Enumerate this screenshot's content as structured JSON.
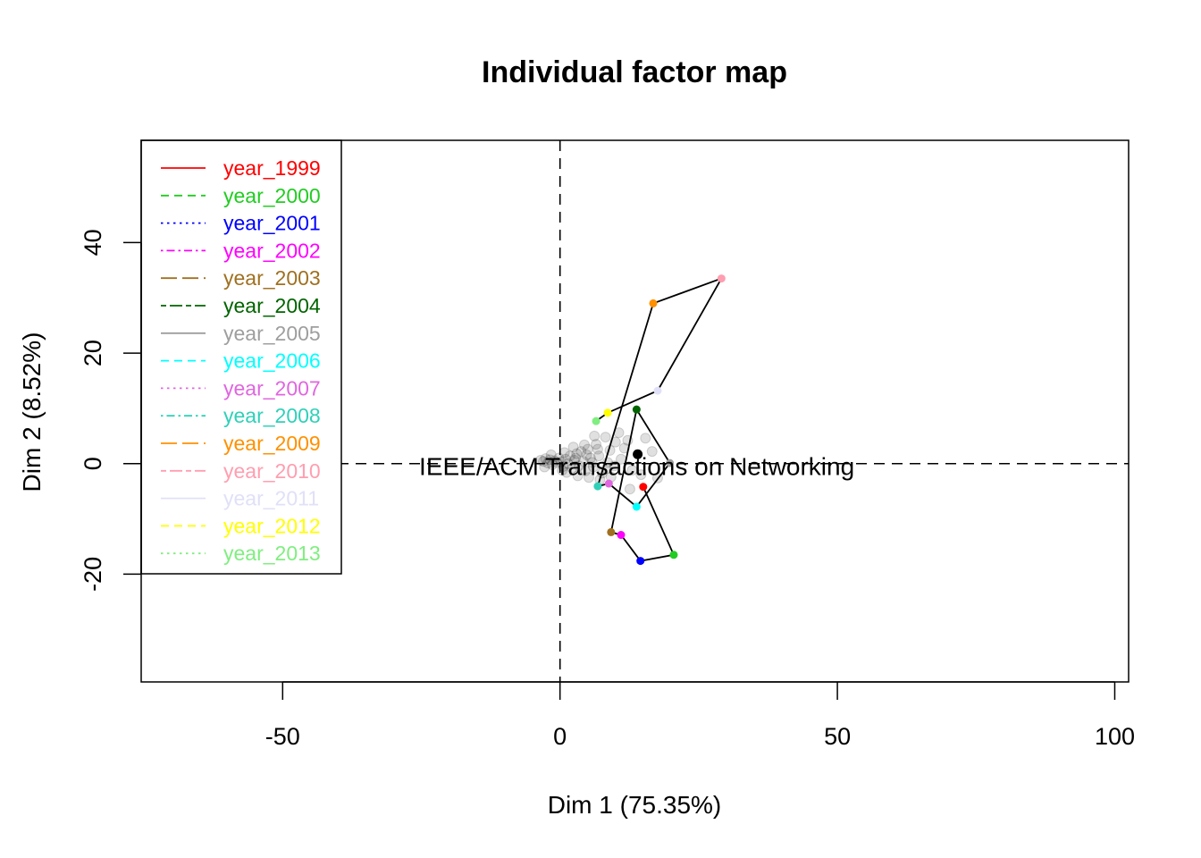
{
  "chart_data": {
    "type": "scatter",
    "title": "Individual factor map",
    "xlabel": "Dim 1 (75.35%)",
    "ylabel": "Dim 2 (8.52%)",
    "xlim": [
      -75.5,
      102.5
    ],
    "ylim": [
      -39.5,
      58.5
    ],
    "xticks": [
      -50,
      0,
      50,
      100
    ],
    "yticks": [
      -20,
      0,
      20,
      40
    ],
    "reference_lines": {
      "x": 0,
      "y": 0,
      "style": "dashed"
    },
    "legend": {
      "position": "top-left",
      "entries": [
        {
          "label": "year_1999",
          "color": "#ff0000",
          "dash": "solid"
        },
        {
          "label": "year_2000",
          "color": "#22cc22",
          "dash": "dashed"
        },
        {
          "label": "year_2001",
          "color": "#0000ff",
          "dash": "dotted"
        },
        {
          "label": "year_2002",
          "color": "#ff00ff",
          "dash": "dotdash"
        },
        {
          "label": "year_2003",
          "color": "#a07020",
          "dash": "longdash"
        },
        {
          "label": "year_2004",
          "color": "#006400",
          "dash": "twodash"
        },
        {
          "label": "year_2005",
          "color": "#9e9e9e",
          "dash": "solid"
        },
        {
          "label": "year_2006",
          "color": "#00ffff",
          "dash": "dashed"
        },
        {
          "label": "year_2007",
          "color": "#e066e0",
          "dash": "dotted"
        },
        {
          "label": "year_2008",
          "color": "#30d0b8",
          "dash": "dotdash"
        },
        {
          "label": "year_2009",
          "color": "#ff9000",
          "dash": "longdash"
        },
        {
          "label": "year_2010",
          "color": "#ff9eb0",
          "dash": "twodash"
        },
        {
          "label": "year_2011",
          "color": "#e0e0f8",
          "dash": "solid"
        },
        {
          "label": "year_2012",
          "color": "#ffff00",
          "dash": "dashed"
        },
        {
          "label": "year_2013",
          "color": "#80ee80",
          "dash": "dotted"
        }
      ]
    },
    "highlighted_individual": {
      "label": "IEEE/ACM Transactions on Networking",
      "x": 14,
      "y": 1.7,
      "color": "#000000"
    },
    "trajectory": [
      {
        "year": "1999",
        "x": 15,
        "y": -4.2,
        "color": "#ff0000"
      },
      {
        "year": "2000",
        "x": 20.5,
        "y": -16.5,
        "color": "#22cc22"
      },
      {
        "year": "2001",
        "x": 14.5,
        "y": -17.6,
        "color": "#0000ff"
      },
      {
        "year": "2002",
        "x": 11,
        "y": -12.9,
        "color": "#ff00ff"
      },
      {
        "year": "2003",
        "x": 9.2,
        "y": -12.4,
        "color": "#a07020"
      },
      {
        "year": "2004",
        "x": 13.8,
        "y": 9.8,
        "color": "#006400"
      },
      {
        "year": "2005",
        "x": 19.8,
        "y": 0.1,
        "color": "#9e9e9e"
      },
      {
        "year": "2006",
        "x": 13.8,
        "y": -7.8,
        "color": "#00ffff"
      },
      {
        "year": "2007",
        "x": 8.8,
        "y": -3.6,
        "color": "#e066e0"
      },
      {
        "year": "2008",
        "x": 6.8,
        "y": -4.1,
        "color": "#30d0b8"
      },
      {
        "year": "2009",
        "x": 16.8,
        "y": 29.0,
        "color": "#ff9000"
      },
      {
        "year": "2010",
        "x": 29.1,
        "y": 33.5,
        "color": "#ff9eb0"
      },
      {
        "year": "2011",
        "x": 17.6,
        "y": 13.2,
        "color": "#e0e0f8"
      },
      {
        "year": "2012",
        "x": 8.6,
        "y": 9.2,
        "color": "#ffff00"
      },
      {
        "year": "2013",
        "x": 6.5,
        "y": 7.7,
        "color": "#80ee80"
      }
    ],
    "background_individuals": [
      [
        -3.5,
        0.6
      ],
      [
        -3,
        0.4
      ],
      [
        -2.6,
        0.9
      ],
      [
        -2.2,
        0.1
      ],
      [
        -1.8,
        0.7
      ],
      [
        -1.4,
        -0.2
      ],
      [
        -1,
        0.5
      ],
      [
        -0.6,
        0.2
      ],
      [
        -0.2,
        1.0
      ],
      [
        0.2,
        0.3
      ],
      [
        0.6,
        -0.5
      ],
      [
        1,
        0.8
      ],
      [
        1.4,
        0.0
      ],
      [
        1.8,
        1.4
      ],
      [
        2.2,
        -0.8
      ],
      [
        2.6,
        0.6
      ],
      [
        3,
        1.8
      ],
      [
        3.4,
        -0.4
      ],
      [
        3.8,
        2.2
      ],
      [
        4.2,
        0.4
      ],
      [
        4.6,
        -1.3
      ],
      [
        5,
        2.6
      ],
      [
        5.5,
        1.0
      ],
      [
        6,
        -0.6
      ],
      [
        6.5,
        3.5
      ],
      [
        7,
        1.4
      ],
      [
        7.6,
        -1.7
      ],
      [
        8.2,
        4.8
      ],
      [
        9,
        2.4
      ],
      [
        10,
        3.9
      ],
      [
        11,
        0.8
      ],
      [
        12.2,
        4.2
      ],
      [
        13,
        -1.2
      ],
      [
        2.4,
        3.0
      ],
      [
        4.4,
        3.4
      ],
      [
        0.8,
        2.0
      ],
      [
        -1.6,
        1.6
      ],
      [
        1.2,
        -1.6
      ],
      [
        3.2,
        -2.2
      ],
      [
        5.2,
        -2.5
      ],
      [
        7.2,
        -2.9
      ],
      [
        9.8,
        -0.4
      ],
      [
        10.6,
        5.6
      ],
      [
        6.2,
        5.0
      ],
      [
        8.6,
        0.2
      ],
      [
        11.6,
        2.8
      ],
      [
        14.6,
        -2.0
      ],
      [
        16.6,
        2.2
      ],
      [
        17.6,
        -2.6
      ],
      [
        15.4,
        4.6
      ],
      [
        9.2,
        -2.4
      ],
      [
        12.6,
        -4.6
      ],
      [
        0.4,
        -1.2
      ],
      [
        -2.8,
        -0.6
      ],
      [
        2.8,
        1.0
      ],
      [
        4.8,
        1.6
      ],
      [
        6.8,
        2.6
      ],
      [
        8.4,
        -0.9
      ],
      [
        5.8,
        0.2
      ]
    ]
  }
}
